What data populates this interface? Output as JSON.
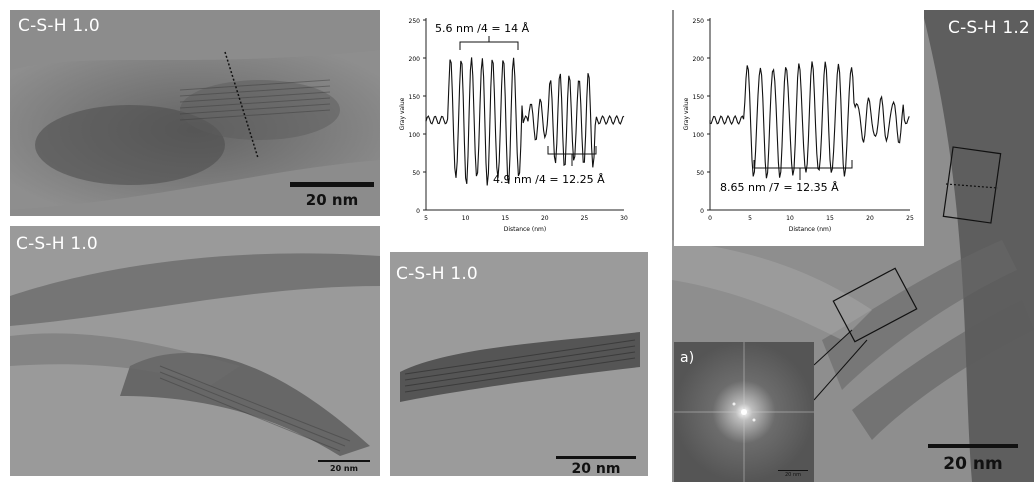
{
  "panels": {
    "top_left": {
      "label": "C-S-H 1.0",
      "scale": "20 nm"
    },
    "bottom_left": {
      "label": "C-S-H 1.0",
      "scale": "20 nm"
    },
    "bottom_mid": {
      "label": "C-S-H 1.0",
      "scale": "20 nm"
    },
    "right": {
      "label": "C-S-H 1.2",
      "scale": "20 nm",
      "inset_label": "a)",
      "inset_scale": "20 nm"
    }
  },
  "plot1": {
    "ylabel": "Gray value",
    "xlabel": "Distance (nm)",
    "xticks": [
      "5",
      "10",
      "15",
      "20",
      "25",
      "30"
    ],
    "yticks": [
      "0",
      "50",
      "100",
      "150",
      "200",
      "250"
    ],
    "annotation_top": "5.6 nm /4  = 14 Å",
    "annotation_bottom": "4.9 nm /4  = 12.25 Å"
  },
  "plot2": {
    "ylabel": "Gray value",
    "xlabel": "Distance (nm)",
    "xticks": [
      "0",
      "5",
      "10",
      "15",
      "20",
      "25"
    ],
    "yticks": [
      "0",
      "50",
      "100",
      "150",
      "200",
      "250"
    ],
    "annotation": "8.65 nm /7  = 12.35 Å"
  }
}
